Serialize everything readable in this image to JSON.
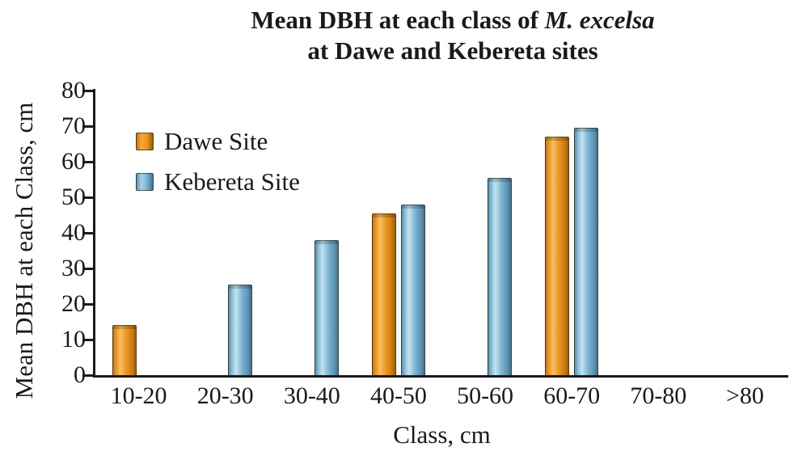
{
  "chart_data": {
    "type": "bar",
    "title_line1_prefix": "Mean DBH at each class of ",
    "title_line1_italic": "M. excelsa",
    "title_line2": "at Dawe and Kebereta sites",
    "xlabel": "Class, cm",
    "ylabel": "Mean DBH at each Class, cm",
    "categories": [
      "10-20",
      "20-30",
      "30-40",
      "40-50",
      "50-60",
      "60-70",
      "70-80",
      ">80"
    ],
    "series": [
      {
        "name": "Dawe Site",
        "color": "#e2901c",
        "values": [
          14,
          null,
          null,
          45.5,
          null,
          67,
          null,
          null
        ]
      },
      {
        "name": "Kebereta Site",
        "color": "#74abcb",
        "values": [
          null,
          25.5,
          38,
          48,
          55.5,
          69.5,
          null,
          null
        ]
      }
    ],
    "ylim": [
      0,
      80
    ],
    "yticks": [
      0,
      10,
      20,
      30,
      40,
      50,
      60,
      70,
      80
    ],
    "legend_position": "top-left-inside",
    "grid": false
  }
}
